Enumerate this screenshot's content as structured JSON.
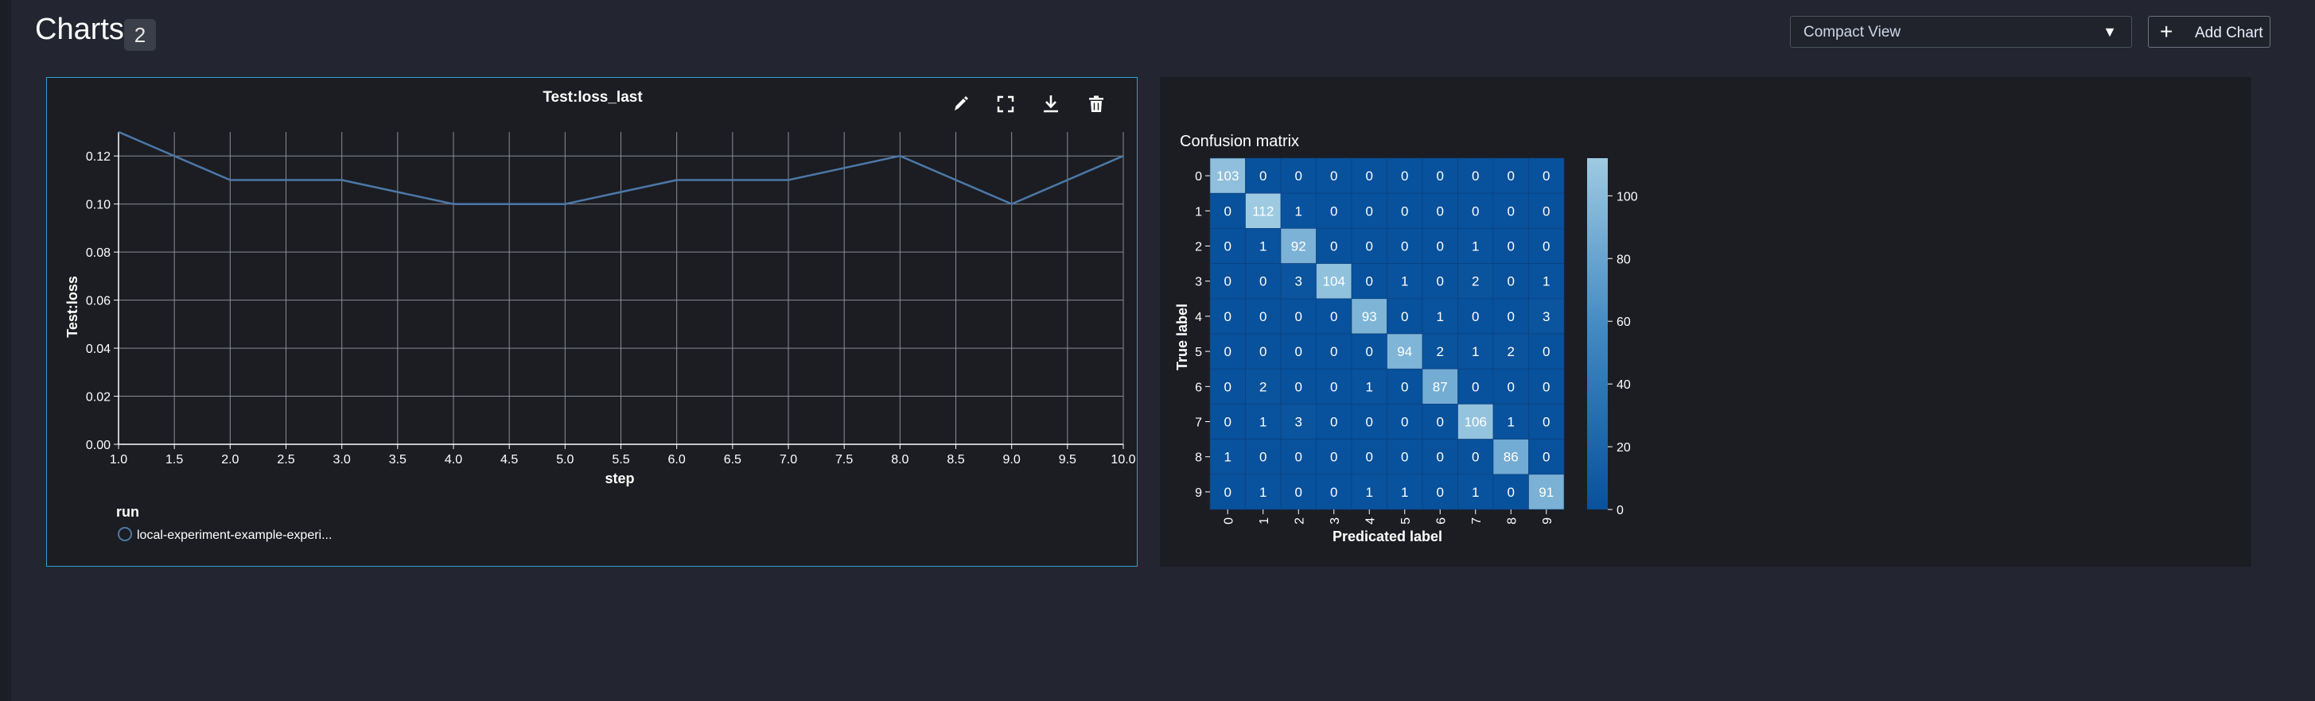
{
  "header": {
    "title": "Charts",
    "count": "2",
    "view_select": "Compact View",
    "add_chart_label": "Add Chart"
  },
  "colors": {
    "background": "#232630",
    "panel": "#1b1d22",
    "active_border": "#2f9fcf",
    "line": "#4c78a8"
  },
  "panel_line": {
    "toolbar": [
      "pencil-icon",
      "fullscreen-icon",
      "download-icon",
      "trash-icon"
    ],
    "legend_title": "run",
    "legend_item": "local-experiment-example-experi..."
  },
  "chart_data": [
    {
      "type": "line",
      "title": "Test:loss_last",
      "xlabel": "step",
      "ylabel": "Test:loss",
      "x": [
        1,
        2,
        3,
        4,
        5,
        6,
        7,
        8,
        9,
        10
      ],
      "series": [
        {
          "name": "local-experiment-example-experi...",
          "values": [
            0.13,
            0.11,
            0.11,
            0.1,
            0.1,
            0.11,
            0.11,
            0.12,
            0.1,
            0.12
          ]
        }
      ],
      "xlim": [
        1,
        10
      ],
      "ylim": [
        0,
        0.13
      ],
      "xticks": [
        "1.0",
        "1.5",
        "2.0",
        "2.5",
        "3.0",
        "3.5",
        "4.0",
        "4.5",
        "5.0",
        "5.5",
        "6.0",
        "6.5",
        "7.0",
        "7.5",
        "8.0",
        "8.5",
        "9.0",
        "9.5",
        "10.0"
      ],
      "yticks": [
        "0.00",
        "0.02",
        "0.04",
        "0.06",
        "0.08",
        "0.10",
        "0.12"
      ],
      "grid": true,
      "legend": "bottom-left"
    },
    {
      "type": "heatmap",
      "title": "Confusion matrix",
      "xlabel": "Predicated label",
      "ylabel": "True label",
      "labels": [
        "0",
        "1",
        "2",
        "3",
        "4",
        "5",
        "6",
        "7",
        "8",
        "9"
      ],
      "matrix": [
        [
          103,
          0,
          0,
          0,
          0,
          0,
          0,
          0,
          0,
          0
        ],
        [
          0,
          112,
          1,
          0,
          0,
          0,
          0,
          0,
          0,
          0
        ],
        [
          0,
          1,
          92,
          0,
          0,
          0,
          0,
          1,
          0,
          0
        ],
        [
          0,
          0,
          3,
          104,
          0,
          1,
          0,
          2,
          0,
          1
        ],
        [
          0,
          0,
          0,
          0,
          93,
          0,
          1,
          0,
          0,
          3
        ],
        [
          0,
          0,
          0,
          0,
          0,
          94,
          2,
          1,
          2,
          0
        ],
        [
          0,
          2,
          0,
          0,
          1,
          0,
          87,
          0,
          0,
          0
        ],
        [
          0,
          1,
          3,
          0,
          0,
          0,
          0,
          106,
          1,
          0
        ],
        [
          1,
          0,
          0,
          0,
          0,
          0,
          0,
          0,
          86,
          0
        ],
        [
          0,
          1,
          0,
          0,
          1,
          1,
          0,
          1,
          0,
          91
        ]
      ],
      "colorbar_ticks": [
        "0",
        "20",
        "40",
        "60",
        "80",
        "100"
      ],
      "color_range": [
        0,
        112
      ]
    }
  ]
}
